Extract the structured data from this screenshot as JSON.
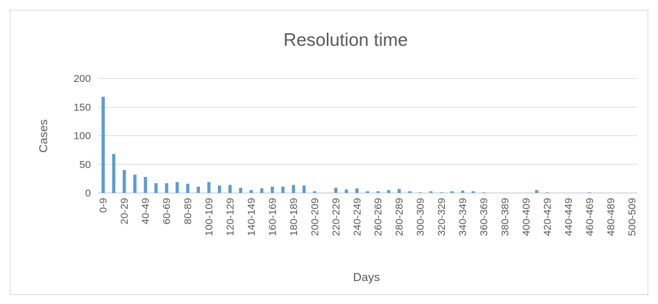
{
  "chart_data": {
    "type": "bar",
    "title": "Resolution time",
    "x_label": "Days",
    "y_label": "Cases",
    "color": "#5b9bd5",
    "grid": true,
    "ylim": [
      0,
      200
    ],
    "yticks": [
      0,
      50,
      100,
      150,
      200
    ],
    "categories": [
      "0-9",
      null,
      "20-29",
      null,
      "40-49",
      null,
      "60-69",
      null,
      "80-89",
      null,
      "100-109",
      null,
      "120-129",
      null,
      "140-149",
      null,
      "160-169",
      null,
      "180-189",
      null,
      "200-209",
      null,
      "220-229",
      null,
      "240-249",
      null,
      "260-269",
      null,
      "280-289",
      null,
      "300-309",
      null,
      "320-329",
      null,
      "340-349",
      null,
      "360-369",
      null,
      "380-389",
      null,
      "400-409",
      null,
      "420-429",
      null,
      "440-449",
      null,
      "460-469",
      null,
      "480-489",
      null,
      "500-509"
    ],
    "values": [
      168,
      68,
      40,
      32,
      28,
      17,
      17,
      19,
      16,
      11,
      19,
      13,
      14,
      9,
      5,
      8,
      11,
      11,
      14,
      13,
      3,
      0,
      9,
      6,
      8,
      3,
      3,
      5,
      7,
      3,
      1,
      3,
      1,
      3,
      4,
      3,
      1,
      0,
      0,
      0,
      0,
      5,
      1,
      0,
      0,
      0,
      1,
      0,
      0,
      0,
      0
    ]
  }
}
